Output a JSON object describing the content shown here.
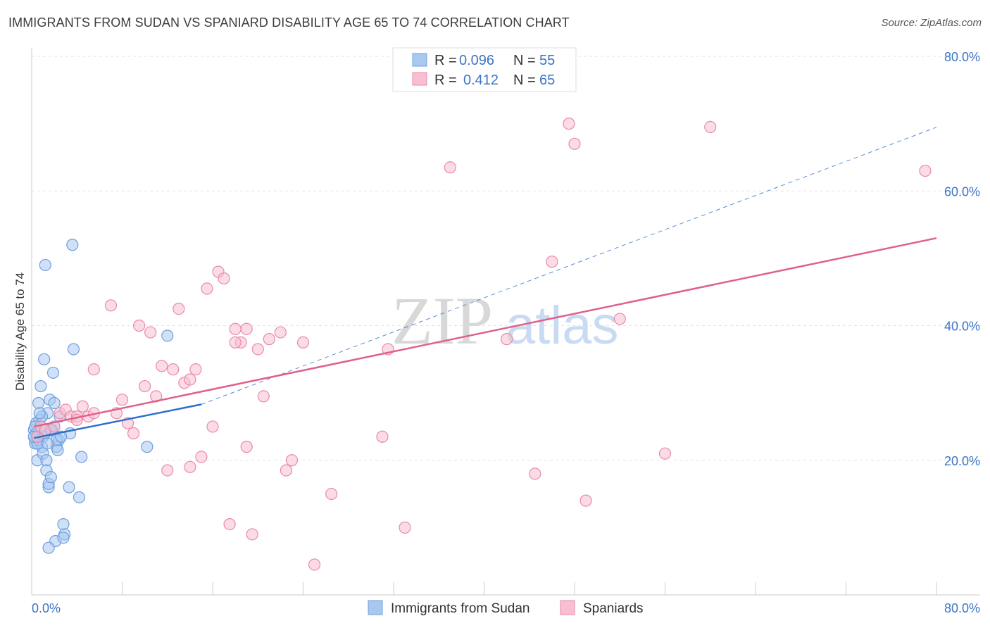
{
  "header": {
    "title": "IMMIGRANTS FROM SUDAN VS SPANIARD DISABILITY AGE 65 TO 74 CORRELATION CHART",
    "source": "Source: ZipAtlas.com"
  },
  "watermark": {
    "zip": "ZIP",
    "atlas": "atlas"
  },
  "legend": {
    "rows": [
      {
        "r_label": "R =",
        "r_value": "0.096",
        "n_label": "N =",
        "n_value": "55",
        "color": "#a9c8f0",
        "stroke": "#6f9fdc"
      },
      {
        "r_label": "R =",
        "r_value": "0.412",
        "n_label": "N =",
        "n_value": "65",
        "color": "#f7bfd1",
        "stroke": "#e98aaa"
      }
    ]
  },
  "bottom_legend": [
    {
      "label": "Immigrants from Sudan",
      "color": "#a9c8f0",
      "stroke": "#6f9fdc"
    },
    {
      "label": "Spaniards",
      "color": "#f7bfd1",
      "stroke": "#e98aaa"
    }
  ],
  "chart_data": {
    "type": "scatter",
    "title": "IMMIGRANTS FROM SUDAN VS SPANIARD DISABILITY AGE 65 TO 74 CORRELATION CHART",
    "xlabel": "",
    "ylabel": "Disability Age 65 to 74",
    "xlim": [
      0,
      80
    ],
    "ylim": [
      0,
      80
    ],
    "x_tick_labels": [
      "0.0%",
      "80.0%"
    ],
    "y_tick_labels": [
      "20.0%",
      "40.0%",
      "60.0%",
      "80.0%"
    ],
    "y_ticks": [
      20,
      40,
      60,
      80
    ],
    "grid": "horizontal dashed",
    "legend_position": "top-center",
    "series": [
      {
        "name": "Immigrants from Sudan",
        "color": "#6f9fdc",
        "fill": "#a9c8f0",
        "trend": {
          "x": [
            0.2,
            15
          ],
          "y": [
            23.3,
            28.3
          ],
          "color": "#2e6fcc"
        },
        "points": [
          [
            0.2,
            24.5
          ],
          [
            0.3,
            23.0
          ],
          [
            0.3,
            22.5
          ],
          [
            0.4,
            25.5
          ],
          [
            0.5,
            24.0
          ],
          [
            0.5,
            20.0
          ],
          [
            0.6,
            28.5
          ],
          [
            0.7,
            26.0
          ],
          [
            0.8,
            31.0
          ],
          [
            0.9,
            22.0
          ],
          [
            1.0,
            21.0
          ],
          [
            1.1,
            35.0
          ],
          [
            1.2,
            49.0
          ],
          [
            1.3,
            20.0
          ],
          [
            1.3,
            18.5
          ],
          [
            1.4,
            27.0
          ],
          [
            1.5,
            16.0
          ],
          [
            1.5,
            16.5
          ],
          [
            1.6,
            29.0
          ],
          [
            1.7,
            17.5
          ],
          [
            1.8,
            24.5
          ],
          [
            1.9,
            33.0
          ],
          [
            2.0,
            25.0
          ],
          [
            2.2,
            22.0
          ],
          [
            2.4,
            23.0
          ],
          [
            2.1,
            8.0
          ],
          [
            1.5,
            7.0
          ],
          [
            2.8,
            10.5
          ],
          [
            2.9,
            9.0
          ],
          [
            2.8,
            8.5
          ],
          [
            3.7,
            36.5
          ],
          [
            3.6,
            52.0
          ],
          [
            3.3,
            16.0
          ],
          [
            4.2,
            14.5
          ],
          [
            4.4,
            20.5
          ],
          [
            3.4,
            24.0
          ],
          [
            2.3,
            21.5
          ],
          [
            12.0,
            38.5
          ],
          [
            10.2,
            22.0
          ],
          [
            2.0,
            28.5
          ],
          [
            2.5,
            26.5
          ],
          [
            0.4,
            24.0
          ],
          [
            0.8,
            25.0
          ],
          [
            1.0,
            23.5
          ],
          [
            0.6,
            23.0
          ],
          [
            0.9,
            26.5
          ],
          [
            1.2,
            24.0
          ],
          [
            0.3,
            25.0
          ],
          [
            0.5,
            22.5
          ],
          [
            2.2,
            23.0
          ],
          [
            1.7,
            24.5
          ],
          [
            0.2,
            23.5
          ],
          [
            1.4,
            22.5
          ],
          [
            2.6,
            23.5
          ],
          [
            0.7,
            27.0
          ]
        ]
      },
      {
        "name": "Spaniards",
        "color": "#e98aaa",
        "fill": "#f7bfd1",
        "trend": {
          "x": [
            0.2,
            80
          ],
          "y": [
            25.0,
            53.0
          ],
          "color": "#e0608a"
        },
        "points": [
          [
            0.5,
            23.5
          ],
          [
            0.8,
            25.0
          ],
          [
            1.2,
            24.5
          ],
          [
            2.0,
            25.0
          ],
          [
            2.5,
            27.0
          ],
          [
            3.0,
            27.5
          ],
          [
            3.5,
            26.5
          ],
          [
            4.0,
            26.5
          ],
          [
            4.5,
            28.0
          ],
          [
            5.0,
            26.5
          ],
          [
            5.5,
            27.0
          ],
          [
            5.5,
            33.5
          ],
          [
            7.0,
            43.0
          ],
          [
            7.5,
            27.0
          ],
          [
            8.0,
            29.0
          ],
          [
            8.5,
            25.5
          ],
          [
            9.0,
            24.0
          ],
          [
            9.5,
            40.0
          ],
          [
            10.0,
            31.0
          ],
          [
            10.5,
            39.0
          ],
          [
            11.0,
            29.5
          ],
          [
            11.5,
            34.0
          ],
          [
            12.0,
            18.5
          ],
          [
            12.5,
            33.5
          ],
          [
            13.0,
            42.5
          ],
          [
            13.5,
            31.5
          ],
          [
            14.0,
            32.0
          ],
          [
            14.5,
            33.5
          ],
          [
            14.0,
            19.0
          ],
          [
            15.0,
            20.5
          ],
          [
            15.5,
            45.5
          ],
          [
            16.0,
            25.0
          ],
          [
            16.5,
            48.0
          ],
          [
            17.0,
            47.0
          ],
          [
            17.5,
            10.5
          ],
          [
            18.0,
            39.5
          ],
          [
            18.5,
            37.5
          ],
          [
            19.0,
            39.5
          ],
          [
            19.0,
            22.0
          ],
          [
            19.5,
            9.0
          ],
          [
            20.0,
            36.5
          ],
          [
            20.5,
            29.5
          ],
          [
            21.0,
            38.0
          ],
          [
            22.0,
            39.0
          ],
          [
            22.5,
            18.5
          ],
          [
            23.0,
            20.0
          ],
          [
            24.0,
            37.5
          ],
          [
            25.0,
            4.5
          ],
          [
            26.5,
            15.0
          ],
          [
            31.0,
            23.5
          ],
          [
            31.5,
            36.5
          ],
          [
            33.0,
            10.0
          ],
          [
            37.0,
            63.5
          ],
          [
            42.0,
            38.0
          ],
          [
            44.5,
            18.0
          ],
          [
            46.0,
            49.5
          ],
          [
            47.5,
            70.0
          ],
          [
            48.0,
            67.0
          ],
          [
            49.0,
            14.0
          ],
          [
            52.0,
            41.0
          ],
          [
            56.0,
            21.0
          ],
          [
            60.0,
            69.5
          ],
          [
            79.0,
            63.0
          ],
          [
            18.0,
            37.5
          ],
          [
            4.0,
            26.0
          ]
        ]
      }
    ]
  }
}
